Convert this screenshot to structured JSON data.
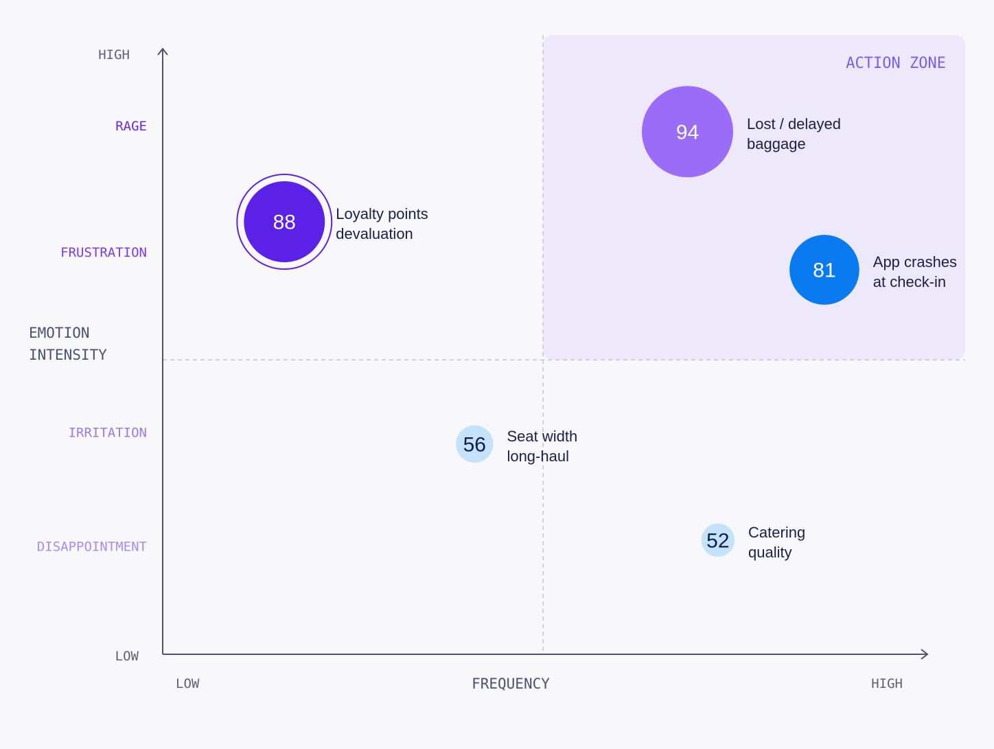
{
  "chart_data": {
    "type": "scatter",
    "ylabel_lines": [
      "EMOTION",
      "INTENSITY"
    ],
    "xlabel": "FREQUENCY",
    "y_axis_end_labels": {
      "high": "HIGH",
      "low": "LOW"
    },
    "x_axis_end_labels": {
      "low": "LOW",
      "high": "HIGH"
    },
    "y_levels": [
      {
        "label": "RAGE",
        "value": 0.88,
        "color": "#6d28d9"
      },
      {
        "label": "FRUSTRATION",
        "value": 0.67,
        "color": "#7c3aed"
      },
      {
        "label": "IRRITATION",
        "value": 0.37,
        "color": "#9b7be8"
      },
      {
        "label": "DISAPPOINTMENT",
        "value": 0.18,
        "color": "#a78bfa"
      }
    ],
    "quadrant": {
      "label": "ACTION ZONE",
      "x_threshold": 0.5,
      "y_threshold": 0.49,
      "color": "#ede9fb",
      "label_color": "#7c5cf0"
    },
    "xlim": [
      0,
      1
    ],
    "ylim": [
      0,
      1
    ],
    "points": [
      {
        "score": "94",
        "label_lines": [
          "Lost / delayed",
          "baggage"
        ],
        "x": 0.69,
        "y": 0.87,
        "size": 94,
        "color": "#9b6cf7",
        "text_color": "#ffffff",
        "ring": false
      },
      {
        "score": "88",
        "label_lines": [
          "Loyalty points",
          "devaluation"
        ],
        "x": 0.16,
        "y": 0.72,
        "size": 88,
        "color": "#5b21e6",
        "text_color": "#ffffff",
        "ring": true
      },
      {
        "score": "81",
        "label_lines": [
          "App crashes",
          "at check-in"
        ],
        "x": 0.87,
        "y": 0.64,
        "size": 81,
        "color": "#0a7af0",
        "text_color": "#ffffff",
        "ring": false
      },
      {
        "score": "56",
        "label_lines": [
          "Seat width",
          "long-haul"
        ],
        "x": 0.41,
        "y": 0.35,
        "size": 56,
        "color": "#c5e2fb",
        "text_color": "#0f1c4d",
        "ring": false
      },
      {
        "score": "52",
        "label_lines": [
          "Catering",
          "quality"
        ],
        "x": 0.73,
        "y": 0.19,
        "size": 52,
        "color": "#c5e2fb",
        "text_color": "#0f1c4d",
        "ring": false
      }
    ],
    "grid": false,
    "axis_color": "#4a5270",
    "muted_text_color": "#5b6178"
  }
}
